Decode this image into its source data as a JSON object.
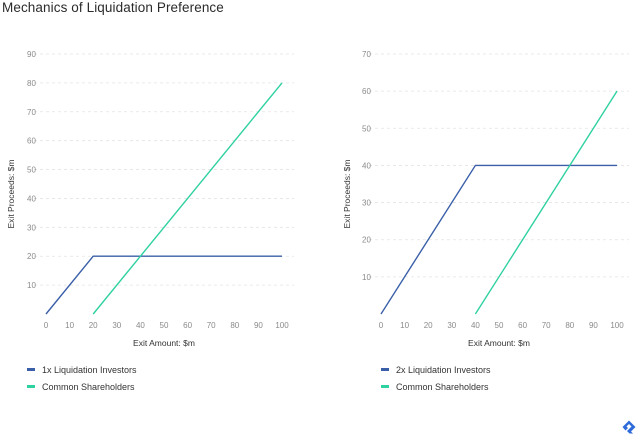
{
  "title": "Mechanics of Liquidation Preference",
  "colors": {
    "investors": "#3a5fa8",
    "common": "#2fd1a0",
    "logo": "#2f6bd8"
  },
  "logo_icon": "toptal-logo-icon",
  "chart_data": [
    {
      "type": "line",
      "xlabel": "Exit Amount: $m",
      "ylabel": "Exit Proceeds: $m",
      "xlim": [
        0,
        100
      ],
      "ylim": [
        0,
        90
      ],
      "xticks": [
        0,
        10,
        20,
        30,
        40,
        50,
        60,
        70,
        80,
        90,
        100
      ],
      "yticks": [
        10,
        20,
        30,
        40,
        50,
        60,
        70,
        80,
        90
      ],
      "grid": true,
      "legend": "bottom-left",
      "series": [
        {
          "name": "1x Liquidation Investors",
          "color": "#3a5fa8",
          "x": [
            0,
            20,
            100
          ],
          "y": [
            0,
            20,
            20
          ]
        },
        {
          "name": "Common Shareholders",
          "color": "#2fd1a0",
          "x": [
            20,
            100
          ],
          "y": [
            0,
            80
          ]
        }
      ]
    },
    {
      "type": "line",
      "xlabel": "Exit Amount: $m",
      "ylabel": "Exit Proceeds: $m",
      "xlim": [
        0,
        100
      ],
      "ylim": [
        0,
        70
      ],
      "xticks": [
        0,
        10,
        20,
        30,
        40,
        50,
        60,
        70,
        80,
        90,
        100
      ],
      "yticks": [
        10,
        20,
        30,
        40,
        50,
        60,
        70
      ],
      "grid": true,
      "legend": "bottom-left",
      "series": [
        {
          "name": "2x Liquidation Investors",
          "color": "#3a5fa8",
          "x": [
            0,
            40,
            100
          ],
          "y": [
            0,
            40,
            40
          ]
        },
        {
          "name": "Common Shareholders",
          "color": "#2fd1a0",
          "x": [
            40,
            100
          ],
          "y": [
            0,
            60
          ]
        }
      ]
    }
  ]
}
